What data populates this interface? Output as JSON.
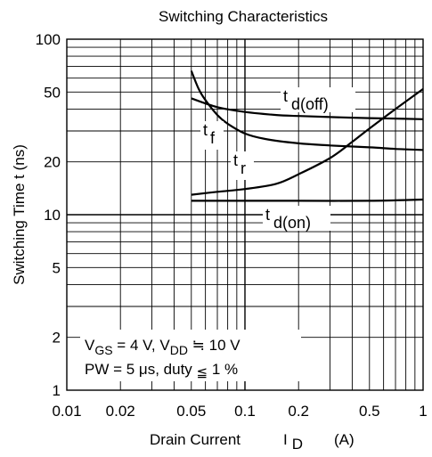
{
  "chart_data": {
    "type": "line",
    "title": "Switching Characteristics",
    "xlabel": "Drain Current",
    "xlabel_symbol": "I",
    "xlabel_symbol_sub": "D",
    "xlabel_unit": "(A)",
    "ylabel": "Switching Time  t  (ns)",
    "x_scale": "log",
    "y_scale": "log",
    "xlim": [
      0.01,
      1
    ],
    "ylim": [
      1,
      100
    ],
    "x_ticks": [
      {
        "value": 0.01,
        "label": "0.01"
      },
      {
        "value": 0.02,
        "label": "0.02"
      },
      {
        "value": 0.05,
        "label": "0.05"
      },
      {
        "value": 0.1,
        "label": "0.1"
      },
      {
        "value": 0.2,
        "label": "0.2"
      },
      {
        "value": 0.5,
        "label": "0.5"
      },
      {
        "value": 1,
        "label": "1"
      }
    ],
    "y_ticks": [
      {
        "value": 1,
        "label": "1"
      },
      {
        "value": 2,
        "label": "2"
      },
      {
        "value": 5,
        "label": "5"
      },
      {
        "value": 10,
        "label": "10"
      },
      {
        "value": 20,
        "label": "20"
      },
      {
        "value": 50,
        "label": "50"
      },
      {
        "value": 100,
        "label": "100"
      }
    ],
    "grid": true,
    "series": [
      {
        "name": "t d(off)",
        "label_main": "t",
        "label_sub": "d(off)",
        "x": [
          0.05,
          0.07,
          0.1,
          0.15,
          0.2,
          0.3,
          0.5,
          0.7,
          1.0
        ],
        "y": [
          46,
          41,
          38.5,
          37,
          36.5,
          36,
          35.5,
          35.3,
          35
        ]
      },
      {
        "name": "t f",
        "label_main": "t",
        "label_sub": "f",
        "x": [
          0.05,
          0.055,
          0.06,
          0.07,
          0.08,
          0.1,
          0.13,
          0.2,
          0.3,
          0.5,
          0.7,
          1.0
        ],
        "y": [
          66,
          52,
          45,
          37,
          33,
          29,
          27,
          25.5,
          24.8,
          24.2,
          23.7,
          23.4
        ]
      },
      {
        "name": "t r",
        "label_main": "t",
        "label_sub": "r",
        "x": [
          0.05,
          0.07,
          0.1,
          0.15,
          0.2,
          0.3,
          0.4,
          0.5,
          0.7,
          1.0
        ],
        "y": [
          13,
          13.5,
          14,
          15,
          17,
          21,
          26,
          31,
          40,
          52
        ]
      },
      {
        "name": "t d(on)",
        "label_main": "t",
        "label_sub": "d(on)",
        "x": [
          0.05,
          0.1,
          0.2,
          0.5,
          1.0
        ],
        "y": [
          12,
          12,
          12,
          12,
          12.2
        ]
      }
    ],
    "annotations": {
      "cond1": {
        "v": "V",
        "v_sub": "GS",
        "mid": " = 4 V, V",
        "vdd_sub": "DD",
        "end": " ≒ 10 V"
      },
      "cond2": {
        "pre": "PW = 5 μs, duty ",
        "le": "≦",
        "end": " 1 %"
      }
    }
  }
}
